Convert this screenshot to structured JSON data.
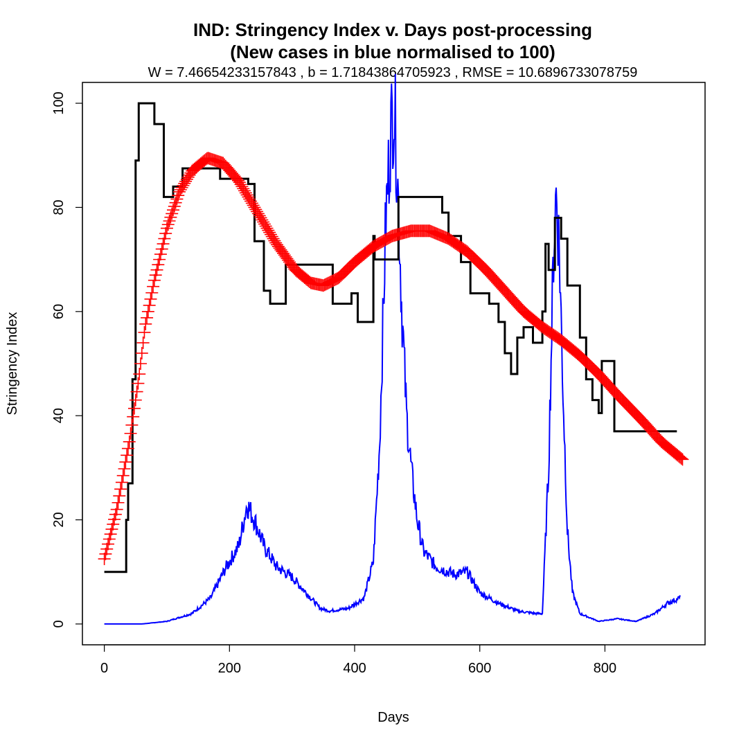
{
  "chart_data": {
    "type": "line",
    "title_line1": "IND: Stringency Index v. Days post-processing",
    "title_line2": "(New cases in blue normalised to 100)",
    "subtitle": "W = 7.46654233157843 , b = 1.71843864705923 , RMSE = 10.6896733078759",
    "xlabel": "Days",
    "ylabel": "Stringency Index",
    "xlim": [
      -35,
      960
    ],
    "ylim": [
      -4,
      104
    ],
    "x_ticks": [
      0,
      200,
      400,
      600,
      800
    ],
    "y_ticks": [
      0,
      20,
      40,
      60,
      80,
      100
    ],
    "x_tick_labels": [
      "0",
      "200",
      "400",
      "600",
      "800"
    ],
    "y_tick_labels": [
      "0",
      "20",
      "40",
      "60",
      "80",
      "100"
    ],
    "grid": false,
    "series": [
      {
        "color": "#000000",
        "style": "step",
        "points": [
          [
            0,
            10
          ],
          [
            35,
            10
          ],
          [
            35,
            20
          ],
          [
            38,
            20
          ],
          [
            38,
            27
          ],
          [
            45,
            27
          ],
          [
            45,
            47
          ],
          [
            50,
            47
          ],
          [
            50,
            89
          ],
          [
            55,
            89
          ],
          [
            55,
            100
          ],
          [
            80,
            100
          ],
          [
            80,
            96
          ],
          [
            95,
            96
          ],
          [
            95,
            82
          ],
          [
            110,
            82
          ],
          [
            110,
            84
          ],
          [
            125,
            84
          ],
          [
            125,
            87.5
          ],
          [
            185,
            87.5
          ],
          [
            185,
            85.5
          ],
          [
            230,
            85.5
          ],
          [
            230,
            84.5
          ],
          [
            240,
            84.5
          ],
          [
            240,
            73.5
          ],
          [
            255,
            73.5
          ],
          [
            255,
            64
          ],
          [
            265,
            64
          ],
          [
            265,
            61.5
          ],
          [
            290,
            61.5
          ],
          [
            290,
            69
          ],
          [
            365,
            69
          ],
          [
            365,
            61.5
          ],
          [
            395,
            61.5
          ],
          [
            395,
            63.5
          ],
          [
            405,
            63.5
          ],
          [
            405,
            58
          ],
          [
            430,
            58
          ],
          [
            430,
            74.5
          ],
          [
            432,
            74.5
          ],
          [
            432,
            70
          ],
          [
            470,
            70
          ],
          [
            470,
            82
          ],
          [
            540,
            82
          ],
          [
            540,
            79
          ],
          [
            550,
            79
          ],
          [
            550,
            74.5
          ],
          [
            570,
            74.5
          ],
          [
            570,
            69.5
          ],
          [
            585,
            69.5
          ],
          [
            585,
            63.5
          ],
          [
            615,
            63.5
          ],
          [
            615,
            61.5
          ],
          [
            630,
            61.5
          ],
          [
            630,
            58
          ],
          [
            640,
            58
          ],
          [
            640,
            52
          ],
          [
            650,
            52
          ],
          [
            650,
            48
          ],
          [
            660,
            48
          ],
          [
            660,
            55
          ],
          [
            670,
            55
          ],
          [
            670,
            57
          ],
          [
            685,
            57
          ],
          [
            685,
            54
          ],
          [
            700,
            54
          ],
          [
            700,
            60
          ],
          [
            705,
            60
          ],
          [
            705,
            73
          ],
          [
            710,
            73
          ],
          [
            710,
            68
          ],
          [
            720,
            68
          ],
          [
            720,
            78
          ],
          [
            730,
            78
          ],
          [
            730,
            74
          ],
          [
            740,
            74
          ],
          [
            740,
            65
          ],
          [
            760,
            65
          ],
          [
            760,
            55
          ],
          [
            770,
            55
          ],
          [
            770,
            47
          ],
          [
            780,
            47
          ],
          [
            780,
            43
          ],
          [
            790,
            43
          ],
          [
            790,
            40.5
          ],
          [
            795,
            40.5
          ],
          [
            795,
            50.5
          ],
          [
            815,
            50.5
          ],
          [
            815,
            37
          ],
          [
            915,
            37
          ]
        ]
      },
      {
        "color": "#0000ff",
        "style": "line",
        "peaks": [
          [
            0,
            0
          ],
          [
            60,
            0
          ],
          [
            100,
            0.5
          ],
          [
            140,
            2
          ],
          [
            170,
            5
          ],
          [
            195,
            11
          ],
          [
            215,
            15
          ],
          [
            228,
            23
          ],
          [
            240,
            20
          ],
          [
            255,
            15
          ],
          [
            275,
            11
          ],
          [
            300,
            9
          ],
          [
            330,
            5
          ],
          [
            345,
            3
          ],
          [
            360,
            2.5
          ],
          [
            390,
            3
          ],
          [
            415,
            5
          ],
          [
            430,
            12
          ],
          [
            440,
            35
          ],
          [
            450,
            78
          ],
          [
            458,
            95
          ],
          [
            463,
            100
          ],
          [
            468,
            88
          ],
          [
            475,
            62
          ],
          [
            483,
            40
          ],
          [
            492,
            28
          ],
          [
            500,
            20
          ],
          [
            510,
            14
          ],
          [
            530,
            11
          ],
          [
            560,
            9.5
          ],
          [
            580,
            10
          ],
          [
            600,
            6
          ],
          [
            630,
            4
          ],
          [
            660,
            2.5
          ],
          [
            690,
            2
          ],
          [
            700,
            2
          ],
          [
            710,
            30
          ],
          [
            718,
            72
          ],
          [
            722,
            83
          ],
          [
            727,
            72
          ],
          [
            733,
            45
          ],
          [
            740,
            18
          ],
          [
            748,
            6
          ],
          [
            760,
            2
          ],
          [
            790,
            0.5
          ],
          [
            820,
            1
          ],
          [
            850,
            0.5
          ],
          [
            880,
            2
          ],
          [
            900,
            4
          ],
          [
            920,
            5
          ]
        ]
      },
      {
        "color": "#ff0000",
        "style": "fit",
        "marker": "+",
        "points": [
          [
            0,
            12.5
          ],
          [
            20,
            22
          ],
          [
            40,
            35
          ],
          [
            55,
            47
          ],
          [
            65,
            57
          ],
          [
            80,
            66
          ],
          [
            100,
            76
          ],
          [
            120,
            83
          ],
          [
            140,
            87
          ],
          [
            165,
            89.5
          ],
          [
            190,
            88.5
          ],
          [
            215,
            85
          ],
          [
            245,
            79
          ],
          [
            275,
            73
          ],
          [
            305,
            68
          ],
          [
            330,
            65.5
          ],
          [
            350,
            65
          ],
          [
            375,
            66.5
          ],
          [
            400,
            69.5
          ],
          [
            430,
            72.5
          ],
          [
            460,
            74.5
          ],
          [
            490,
            75.5
          ],
          [
            520,
            75.5
          ],
          [
            550,
            74
          ],
          [
            580,
            71.5
          ],
          [
            610,
            68
          ],
          [
            640,
            64
          ],
          [
            670,
            60
          ],
          [
            700,
            57
          ],
          [
            730,
            54.5
          ],
          [
            760,
            51.5
          ],
          [
            790,
            48
          ],
          [
            820,
            44
          ],
          [
            860,
            39
          ],
          [
            890,
            35
          ],
          [
            925,
            31.5
          ]
        ]
      }
    ]
  }
}
